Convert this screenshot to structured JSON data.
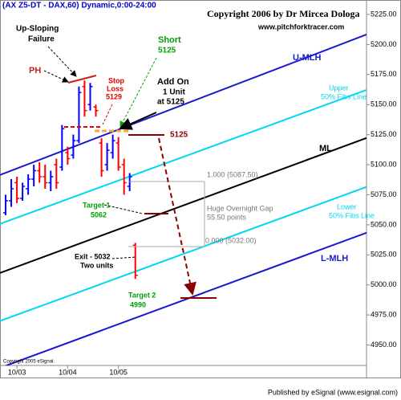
{
  "chart_data": {
    "type": "ohlc",
    "title": "(AX Z5-DT - DAX,60) Dynamic,0:00-24:00",
    "copyright": "Copyright 2006 by Dr Mircea Dologa",
    "website": "www.pitchforktracer.com",
    "source_note": "Copyright 2005 eSignal.",
    "footer": "Published by eSignal (www.esignal.com)",
    "x": [
      0,
      1,
      2,
      3,
      4,
      5,
      6,
      7,
      8,
      9,
      10,
      11,
      12,
      13,
      14,
      15,
      16,
      17,
      18,
      19,
      20,
      21,
      22,
      23
    ],
    "open": [
      5060,
      5070,
      5085,
      5072,
      5080,
      5088,
      5095,
      5090,
      5085,
      5100,
      5098,
      5110,
      5108,
      5120,
      5165,
      5150,
      5148,
      5118,
      5100,
      5110,
      5118,
      5100,
      5082,
      5033
    ],
    "high": [
      5075,
      5088,
      5090,
      5085,
      5092,
      5100,
      5102,
      5100,
      5095,
      5105,
      5133,
      5115,
      5125,
      5165,
      5170,
      5168,
      5150,
      5122,
      5118,
      5125,
      5123,
      5105,
      5093,
      5035
    ],
    "low": [
      5058,
      5065,
      5068,
      5070,
      5075,
      5082,
      5085,
      5080,
      5078,
      5080,
      5095,
      5100,
      5105,
      5118,
      5140,
      5145,
      5140,
      5090,
      5095,
      5105,
      5095,
      5075,
      5078,
      5005
    ],
    "close": [
      5070,
      5080,
      5072,
      5082,
      5088,
      5095,
      5090,
      5085,
      5090,
      5085,
      5130,
      5105,
      5120,
      5160,
      5145,
      5165,
      5145,
      5095,
      5112,
      5120,
      5098,
      5085,
      5090,
      5008
    ],
    "up_color": "#0000ff",
    "down_color": "#ff0000",
    "xlim": [
      -1,
      64
    ],
    "ylim": [
      4933,
      5237
    ],
    "xticks": [
      {
        "value": 2,
        "label": "10/03"
      },
      {
        "value": 11,
        "label": "10/04"
      },
      {
        "value": 20,
        "label": "10/05"
      }
    ],
    "yticks": [
      {
        "value": 4950,
        "label": "4950.00"
      },
      {
        "value": 4975,
        "label": "4975.00"
      },
      {
        "value": 5000,
        "label": "5000.00"
      },
      {
        "value": 5025,
        "label": "5025.00"
      },
      {
        "value": 5050,
        "label": "5050.00"
      },
      {
        "value": 5075,
        "label": "5075.00"
      },
      {
        "value": 5100,
        "label": "5100.00"
      },
      {
        "value": 5125,
        "label": "5125.00"
      },
      {
        "value": 5150,
        "label": "5150.00"
      },
      {
        "value": 5175,
        "label": "5175.00"
      },
      {
        "value": 5200,
        "label": "5200.00"
      },
      {
        "value": 5225,
        "label": "5225.00"
      }
    ],
    "lines": [
      {
        "label": [
          "U-MLH"
        ],
        "color": "#1a1acc",
        "x": [
          -1,
          64
        ],
        "values": [
          5091.5,
          5208.3
        ]
      },
      {
        "label": [
          "Upper",
          "50% Fibs Line"
        ],
        "color": "#00d8f0",
        "x": [
          -1,
          64
        ],
        "values": [
          5050.8,
          5162.2
        ]
      },
      {
        "label": [
          "ML"
        ],
        "color": "#000000",
        "x": [
          -1,
          64
        ],
        "values": [
          5010.0,
          5122.2
        ]
      },
      {
        "label": [
          "Lower",
          "50% Fibs Line"
        ],
        "color": "#00d8f0",
        "x": [
          -1,
          64
        ],
        "values": [
          4970.0,
          5081.5
        ]
      },
      {
        "label": [
          "L-MLH"
        ],
        "color": "#1a1acc",
        "x": [
          -1,
          64
        ],
        "values": [
          4931.0,
          5043.4
        ]
      }
    ],
    "annotations": {
      "failure": [
        "Up-Sloping",
        "Failure"
      ],
      "ph": "PH",
      "stop": [
        "Stop",
        "Loss",
        "5129"
      ],
      "short": [
        "Short",
        "5125"
      ],
      "add_on": [
        "Add On",
        "1 Unit",
        "at 5125"
      ],
      "level": "5125",
      "fib_top": "1.000 (5087.50)",
      "gap": [
        "Huge Overnight Gap",
        "55.50 points"
      ],
      "fib_bottom": "0.000 (5032.00)",
      "target1": [
        "Target 1",
        "5062"
      ],
      "exit": [
        "Exit - 5032",
        "Two units"
      ],
      "target2": [
        "Target 2",
        "4990"
      ]
    }
  }
}
